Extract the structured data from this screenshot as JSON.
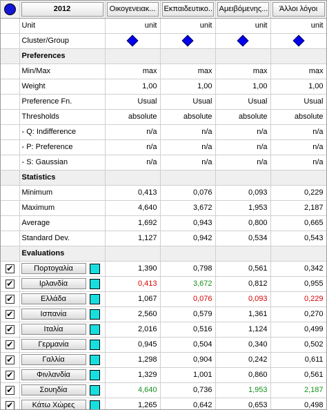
{
  "header": {
    "year": "2012",
    "columns": [
      "Οικογενειακ...",
      "Εκπαιδευτικο...",
      "Αμειβόμενης...",
      "Άλλοι λόγοι"
    ]
  },
  "rows_top": [
    {
      "label": "Unit",
      "values": [
        "unit",
        "unit",
        "unit",
        "unit"
      ]
    }
  ],
  "cluster": {
    "label": "Cluster/Group",
    "icon": "blue-diamond-icon",
    "color": "#0000ee"
  },
  "preferences": {
    "title": "Preferences",
    "rows": [
      {
        "label": "Min/Max",
        "values": [
          "max",
          "max",
          "max",
          "max"
        ]
      },
      {
        "label": "Weight",
        "values": [
          "1,00",
          "1,00",
          "1,00",
          "1,00"
        ]
      },
      {
        "label": "Preference Fn.",
        "values": [
          "Usual",
          "Usual",
          "Usual",
          "Usual"
        ]
      },
      {
        "label": "Thresholds",
        "values": [
          "absolute",
          "absolute",
          "absolute",
          "absolute"
        ]
      },
      {
        "label": "- Q: Indifference",
        "values": [
          "n/a",
          "n/a",
          "n/a",
          "n/a"
        ]
      },
      {
        "label": "- P: Preference",
        "values": [
          "n/a",
          "n/a",
          "n/a",
          "n/a"
        ]
      },
      {
        "label": "- S: Gaussian",
        "values": [
          "n/a",
          "n/a",
          "n/a",
          "n/a"
        ]
      }
    ]
  },
  "statistics": {
    "title": "Statistics",
    "rows": [
      {
        "label": "Minimum",
        "values": [
          "0,413",
          "0,076",
          "0,093",
          "0,229"
        ]
      },
      {
        "label": "Maximum",
        "values": [
          "4,640",
          "3,672",
          "1,953",
          "2,187"
        ]
      },
      {
        "label": "Average",
        "values": [
          "1,692",
          "0,943",
          "0,800",
          "0,665"
        ]
      },
      {
        "label": "Standard Dev.",
        "values": [
          "1,127",
          "0,942",
          "0,534",
          "0,543"
        ]
      }
    ]
  },
  "evaluations": {
    "title": "Evaluations",
    "checkmark": "✔",
    "swatch_color": "#19dede",
    "highlight_colors": {
      "min": "#d80000",
      "max": "#14901a"
    },
    "rows": [
      {
        "country": "Πορτογαλία",
        "checked": true,
        "values": [
          "1,390",
          "0,798",
          "0,561",
          "0,342"
        ],
        "styles": [
          "",
          "",
          "",
          ""
        ]
      },
      {
        "country": "Ιρλανδία",
        "checked": true,
        "values": [
          "0,413",
          "3,672",
          "0,812",
          "0,955"
        ],
        "styles": [
          "red",
          "green",
          "",
          ""
        ]
      },
      {
        "country": "Ελλάδα",
        "checked": true,
        "values": [
          "1,067",
          "0,076",
          "0,093",
          "0,229"
        ],
        "styles": [
          "",
          "red",
          "red",
          "red"
        ]
      },
      {
        "country": "Ισπανία",
        "checked": true,
        "values": [
          "2,560",
          "0,579",
          "1,361",
          "0,270"
        ],
        "styles": [
          "",
          "",
          "",
          ""
        ]
      },
      {
        "country": "Ιταλία",
        "checked": true,
        "values": [
          "2,016",
          "0,516",
          "1,124",
          "0,499"
        ],
        "styles": [
          "",
          "",
          "",
          ""
        ]
      },
      {
        "country": "Γερμανία",
        "checked": true,
        "values": [
          "0,945",
          "0,504",
          "0,340",
          "0,502"
        ],
        "styles": [
          "",
          "",
          "",
          ""
        ]
      },
      {
        "country": "Γαλλία",
        "checked": true,
        "values": [
          "1,298",
          "0,904",
          "0,242",
          "0,611"
        ],
        "styles": [
          "",
          "",
          "",
          ""
        ]
      },
      {
        "country": "Φινλανδία",
        "checked": true,
        "values": [
          "1,329",
          "1,001",
          "0,860",
          "0,561"
        ],
        "styles": [
          "",
          "",
          "",
          ""
        ]
      },
      {
        "country": "Σουηδία",
        "checked": true,
        "values": [
          "4,640",
          "0,736",
          "1,953",
          "2,187"
        ],
        "styles": [
          "green",
          "",
          "green",
          "green"
        ]
      },
      {
        "country": "Κάτω Χώρες",
        "checked": true,
        "values": [
          "1,265",
          "0,642",
          "0,653",
          "0,498"
        ],
        "styles": [
          "",
          "",
          "",
          ""
        ]
      }
    ]
  }
}
